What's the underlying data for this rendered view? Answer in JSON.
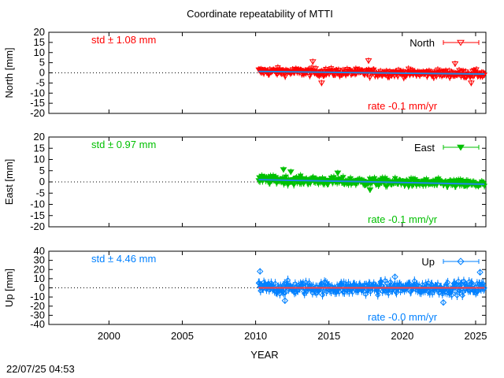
{
  "chart_data": {
    "type": "scatter",
    "title": "Coordinate repeatability of MTTI",
    "xlabel": "YEAR",
    "xlim": [
      1995.9,
      2025.7
    ],
    "xticks": [
      2000,
      2005,
      2010,
      2015,
      2020,
      2025
    ],
    "timestamp": "22/07/25 04:53",
    "data_span": [
      2010.2,
      2025.6
    ],
    "grid": false,
    "legend_position": "top-right",
    "zero_line": "dotted",
    "panels": [
      {
        "key": "north",
        "ylabel": "North [mm]",
        "ylim": [
          -20,
          20
        ],
        "yticks": [
          20,
          15,
          10,
          5,
          0,
          -5,
          -10,
          -15,
          -20
        ],
        "series_name": "North",
        "marker": "open-triangle-down",
        "color": "#ff0000",
        "std_label": "std ± 1.08 mm",
        "rate_label": "rate -0.1 mm/yr",
        "trend": [
          [
            2010.2,
            0.7
          ],
          [
            2018.0,
            0.0
          ],
          [
            2025.6,
            -0.6
          ]
        ],
        "scatter_amplitude": 2.2,
        "outliers": [
          [
            2013.9,
            5.5
          ],
          [
            2014.5,
            -5.0
          ],
          [
            2017.7,
            6.0
          ],
          [
            2023.6,
            4.5
          ],
          [
            2024.7,
            -5.0
          ]
        ]
      },
      {
        "key": "east",
        "ylabel": "East [mm]",
        "ylim": [
          -20,
          20
        ],
        "yticks": [
          20,
          15,
          10,
          5,
          0,
          -5,
          -10,
          -15,
          -20
        ],
        "series_name": "East",
        "marker": "filled-triangle-down",
        "color": "#00c000",
        "std_label": "std ± 0.97 mm",
        "rate_label": "rate -0.1 mm/yr",
        "trend": [
          [
            2010.2,
            1.0
          ],
          [
            2018.0,
            0.0
          ],
          [
            2025.6,
            -1.0
          ]
        ],
        "scatter_amplitude": 2.0,
        "outliers": [
          [
            2011.9,
            5.5
          ],
          [
            2012.4,
            4.5
          ],
          [
            2015.6,
            4.0
          ],
          [
            2017.8,
            -3.5
          ]
        ]
      },
      {
        "key": "up",
        "ylabel": "Up [mm]",
        "ylim": [
          -40,
          40
        ],
        "yticks": [
          40,
          30,
          20,
          10,
          0,
          -10,
          -20,
          -30,
          -40
        ],
        "series_name": "Up",
        "marker": "open-diamond",
        "color": "#0080ff",
        "std_label": "std ± 4.46 mm",
        "rate_label": "rate -0.0 mm/yr",
        "trend": [
          [
            2010.2,
            0.0
          ],
          [
            2025.6,
            0.0
          ]
        ],
        "scatter_amplitude": 8.0,
        "outliers": [
          [
            2010.3,
            18
          ],
          [
            2012.0,
            -14
          ],
          [
            2019.5,
            12
          ],
          [
            2022.8,
            -16
          ],
          [
            2025.3,
            17
          ]
        ]
      }
    ]
  }
}
